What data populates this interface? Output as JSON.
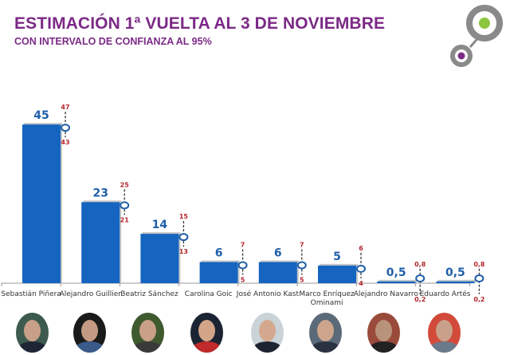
{
  "header": {
    "title": "ESTIMACIÓN 1ª VUELTA AL 3 DE NOVIEMBRE",
    "subtitle": "CON INTERVALO DE CONFIANZA AL 95%"
  },
  "logo": {
    "icon": "connected-circles-logo-icon",
    "outer_color": "#8a8a8a",
    "dot_large": "#8dc63f",
    "dot_small": "#7b2a86"
  },
  "colors": {
    "bar": "#1565c0",
    "bar_shadow": "#b8b8b8",
    "value_label": "#1f5fa8",
    "ci_label": "#b5262c",
    "ci_marker": "#1f5fa8",
    "title": "#7b2a86"
  },
  "chart_data": {
    "type": "bar",
    "title": "ESTIMACIÓN 1ª VUELTA AL 3 DE NOVIEMBRE",
    "subtitle": "CON INTERVALO DE CONFIANZA AL 95%",
    "xlabel": "",
    "ylabel": "",
    "ylim": [
      0,
      47
    ],
    "grid": false,
    "legend": "none",
    "categories": [
      "Sebastián Piñera",
      "Alejandro Guillier",
      "Beatriz Sánchez",
      "Carolina Goic",
      "José Antonio Kast",
      "Marco Enríquez Ominami",
      "Alejandro Navarro",
      "Eduardo Artés"
    ],
    "category_lines": [
      [
        "Sebastián Piñera"
      ],
      [
        "Alejandro Guillier"
      ],
      [
        "Beatriz Sánchez"
      ],
      [
        "Carolina Goic"
      ],
      [
        "José Antonio Kast"
      ],
      [
        "Marco Enríquez",
        "Ominami"
      ],
      [
        "Alejandro Navarro"
      ],
      [
        "Eduardo Artés"
      ]
    ],
    "values": [
      45,
      23,
      14,
      6,
      6,
      5,
      0.5,
      0.5
    ],
    "value_labels": [
      "45",
      "23",
      "14",
      "6",
      "6",
      "5",
      "0,5",
      "0,5"
    ],
    "ci_upper": [
      47,
      25,
      15,
      7,
      7,
      6,
      0.8,
      0.8
    ],
    "ci_lower": [
      43,
      21,
      13,
      5,
      5,
      4,
      0.2,
      0.2
    ],
    "ci_upper_labels": [
      "47",
      "25",
      "15",
      "7",
      "7",
      "6",
      "0,8",
      "0,8"
    ],
    "ci_lower_labels": [
      "43",
      "21",
      "13",
      "5",
      "5",
      "4",
      "0,2",
      "0,2"
    ]
  },
  "photos": [
    {
      "name": "Sebastián Piñera",
      "bg": "#3d5a4e",
      "skin": "#c8a08a",
      "suit": "#1e2636"
    },
    {
      "name": "Alejandro Guillier",
      "bg": "#1a1a1a",
      "skin": "#c49a84",
      "suit": "#3a5a8a"
    },
    {
      "name": "Beatriz Sánchez",
      "bg": "#3f5a2f",
      "skin": "#c9a088",
      "suit": "#3a3a3a"
    },
    {
      "name": "Carolina Goic",
      "bg": "#1b2433",
      "skin": "#d2a488",
      "suit": "#c02a2a"
    },
    {
      "name": "José Antonio Kast",
      "bg": "#c9d3d8",
      "skin": "#d4a88e",
      "suit": "#1e2330"
    },
    {
      "name": "Marco Enríquez Ominami",
      "bg": "#5a6a78",
      "skin": "#cda48c",
      "suit": "#2a3242"
    },
    {
      "name": "Alejandro Navarro",
      "bg": "#9a4a3a",
      "skin": "#b8927a",
      "suit": "#222222"
    },
    {
      "name": "Eduardo Artés",
      "bg": "#d24a3a",
      "skin": "#c9a08a",
      "suit": "#6a7a8a"
    }
  ]
}
